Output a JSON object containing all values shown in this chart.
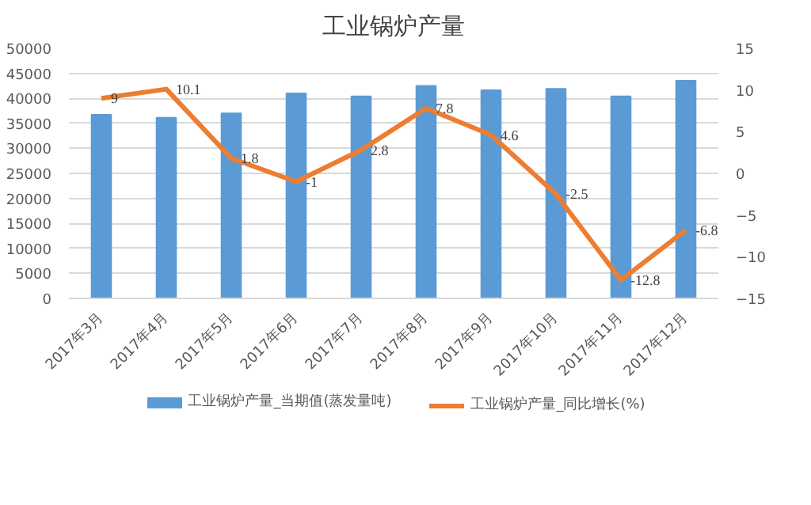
{
  "chart_data": {
    "type": "bar",
    "title": "工业锅炉产量",
    "categories": [
      "2017年3月",
      "2017年4月",
      "2017年5月",
      "2017年6月",
      "2017年7月",
      "2017年8月",
      "2017年9月",
      "2017年10月",
      "2017年11月",
      "2017年12月"
    ],
    "series": [
      {
        "name": "工业锅炉产量_当期值(蒸发量吨)",
        "color": "#5b9bd5",
        "values": [
          36700,
          36100,
          37000,
          41000,
          40400,
          42500,
          41600,
          41900,
          40400,
          43500
        ]
      },
      {
        "name": "工业锅炉产量_同比增长(%)",
        "color": "#ed7d31",
        "type": "line",
        "axis": "y2",
        "data_labels": true,
        "values": [
          9,
          10.1,
          1.8,
          -1,
          2.8,
          7.8,
          4.6,
          -2.5,
          -12.8,
          -6.8
        ]
      }
    ],
    "ylim": [
      0,
      50000
    ],
    "yticks": [
      0,
      5000,
      10000,
      15000,
      20000,
      25000,
      30000,
      35000,
      40000,
      45000,
      50000
    ],
    "y2lim": [
      -15,
      15
    ],
    "y2ticks": [
      -15,
      -10,
      -5,
      0,
      5,
      10,
      15
    ],
    "grid": "y",
    "legend": "bottom"
  }
}
